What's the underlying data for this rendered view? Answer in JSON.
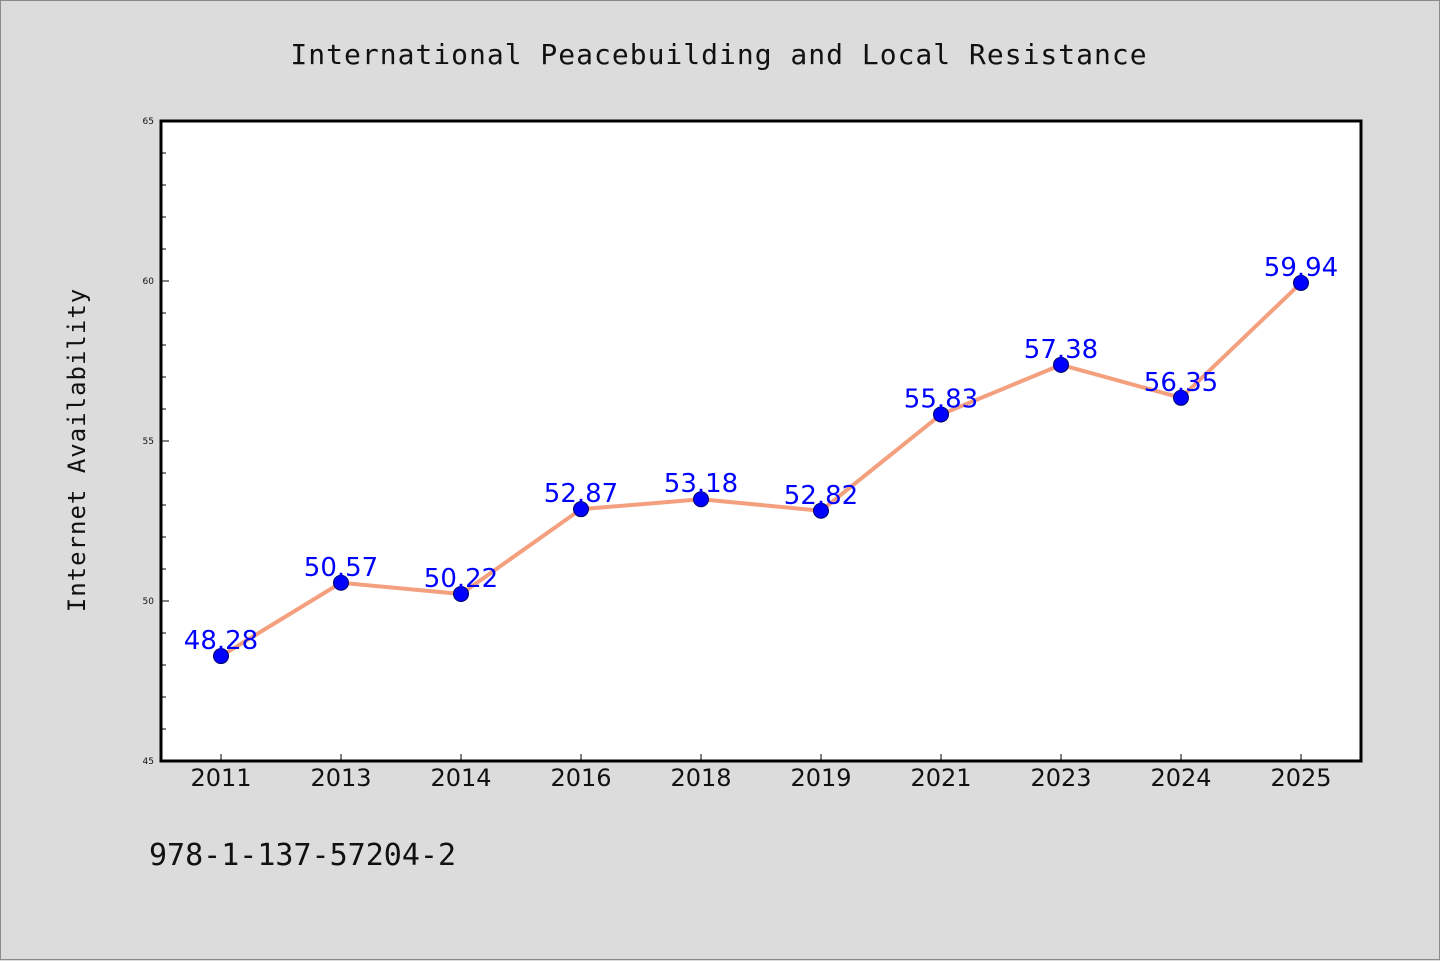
{
  "chart_data": {
    "type": "line",
    "title": "International Peacebuilding and Local Resistance",
    "xlabel": "",
    "ylabel": "Internet Availability",
    "categories": [
      "2011",
      "2013",
      "2014",
      "2016",
      "2018",
      "2019",
      "2021",
      "2023",
      "2024",
      "2025"
    ],
    "series": [
      {
        "values": [
          48.28,
          50.57,
          50.22,
          52.87,
          53.18,
          52.82,
          55.83,
          57.38,
          56.35,
          59.94
        ],
        "line_color": "#f4a07e",
        "marker_color": "#0000ff",
        "label_color": "#0000ff"
      }
    ],
    "ylim": [
      45,
      65
    ],
    "yticks": [
      45,
      50,
      55,
      60,
      65
    ],
    "grid": false,
    "legend": "none"
  },
  "footer": {
    "isbn": "978-1-137-57204-2"
  },
  "colors": {
    "background": "#dcdcdc",
    "plot_background": "#ffffff",
    "axis": "#000000"
  }
}
